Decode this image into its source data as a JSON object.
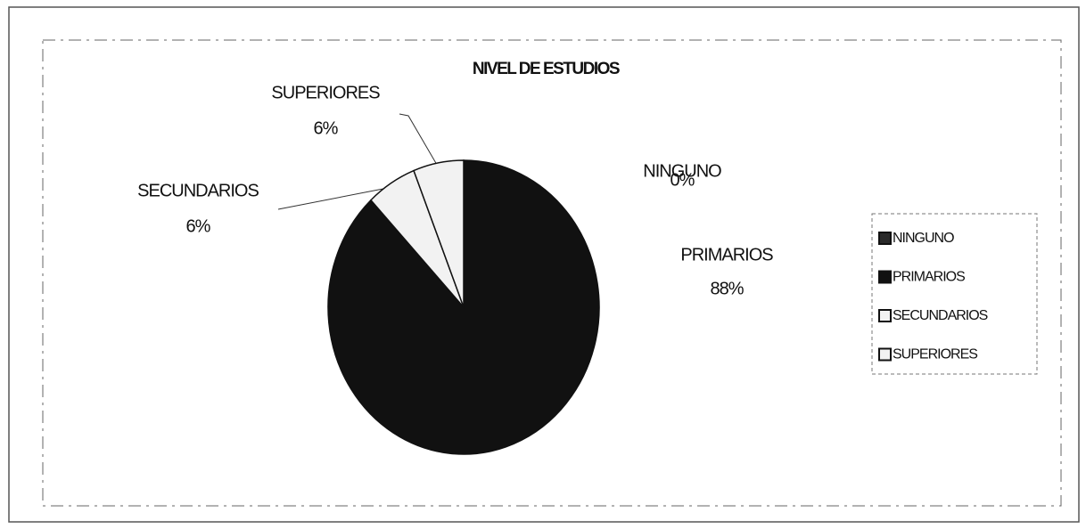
{
  "chart_data": {
    "type": "pie",
    "title": "NIVEL DE ESTUDIOS",
    "categories": [
      "NINGUNO",
      "PRIMARIOS",
      "SECUNDARIOS",
      "SUPERIORES"
    ],
    "values": [
      0,
      88,
      6,
      6
    ],
    "value_labels": [
      "0%",
      "88%",
      "6%",
      "6%"
    ],
    "colors": [
      "#2a2a2a",
      "#111111",
      "#f2f2f2",
      "#f2f2f2"
    ],
    "legend": "right"
  }
}
